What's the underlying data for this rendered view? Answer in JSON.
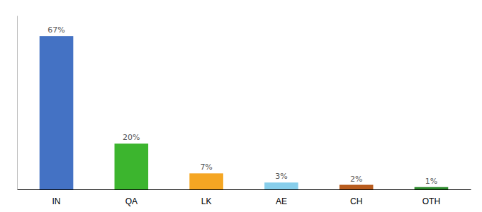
{
  "chart_data": {
    "type": "bar",
    "categories": [
      "IN",
      "QA",
      "LK",
      "AE",
      "CH",
      "OTH"
    ],
    "values": [
      67,
      20,
      7,
      3,
      2,
      1
    ],
    "value_labels": [
      "67%",
      "20%",
      "7%",
      "3%",
      "2%",
      "1%"
    ],
    "colors": [
      "#4472c4",
      "#3cb52e",
      "#f5a623",
      "#87ceeb",
      "#b85c1e",
      "#2d8a2d"
    ],
    "ylim": [
      0,
      76
    ],
    "data_labels": true,
    "tick_labels": "x",
    "grid": false
  }
}
